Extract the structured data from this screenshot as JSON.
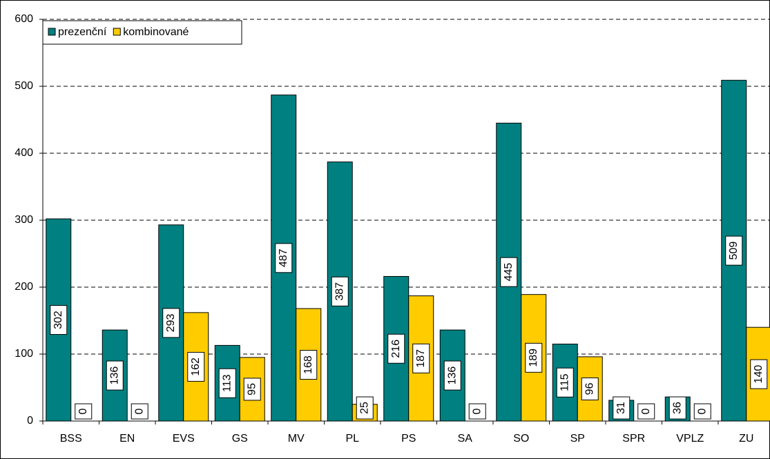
{
  "chart_data": {
    "type": "bar",
    "categories": [
      "BSS",
      "EN",
      "EVS",
      "GS",
      "MV",
      "PL",
      "PS",
      "SA",
      "SO",
      "SP",
      "SPR",
      "VPLZ",
      "ZU"
    ],
    "series": [
      {
        "name": "prezenční",
        "color": "#008080",
        "values": [
          302,
          136,
          293,
          113,
          487,
          387,
          216,
          136,
          445,
          115,
          31,
          36,
          509
        ]
      },
      {
        "name": "kombinované",
        "color": "#ffcc00",
        "values": [
          0,
          0,
          162,
          95,
          168,
          25,
          187,
          0,
          189,
          96,
          0,
          0,
          140
        ]
      }
    ],
    "ylim": [
      0,
      600
    ],
    "yticks": [
      0,
      100,
      200,
      300,
      400,
      500,
      600
    ],
    "grid": true,
    "legend": "top-left"
  }
}
